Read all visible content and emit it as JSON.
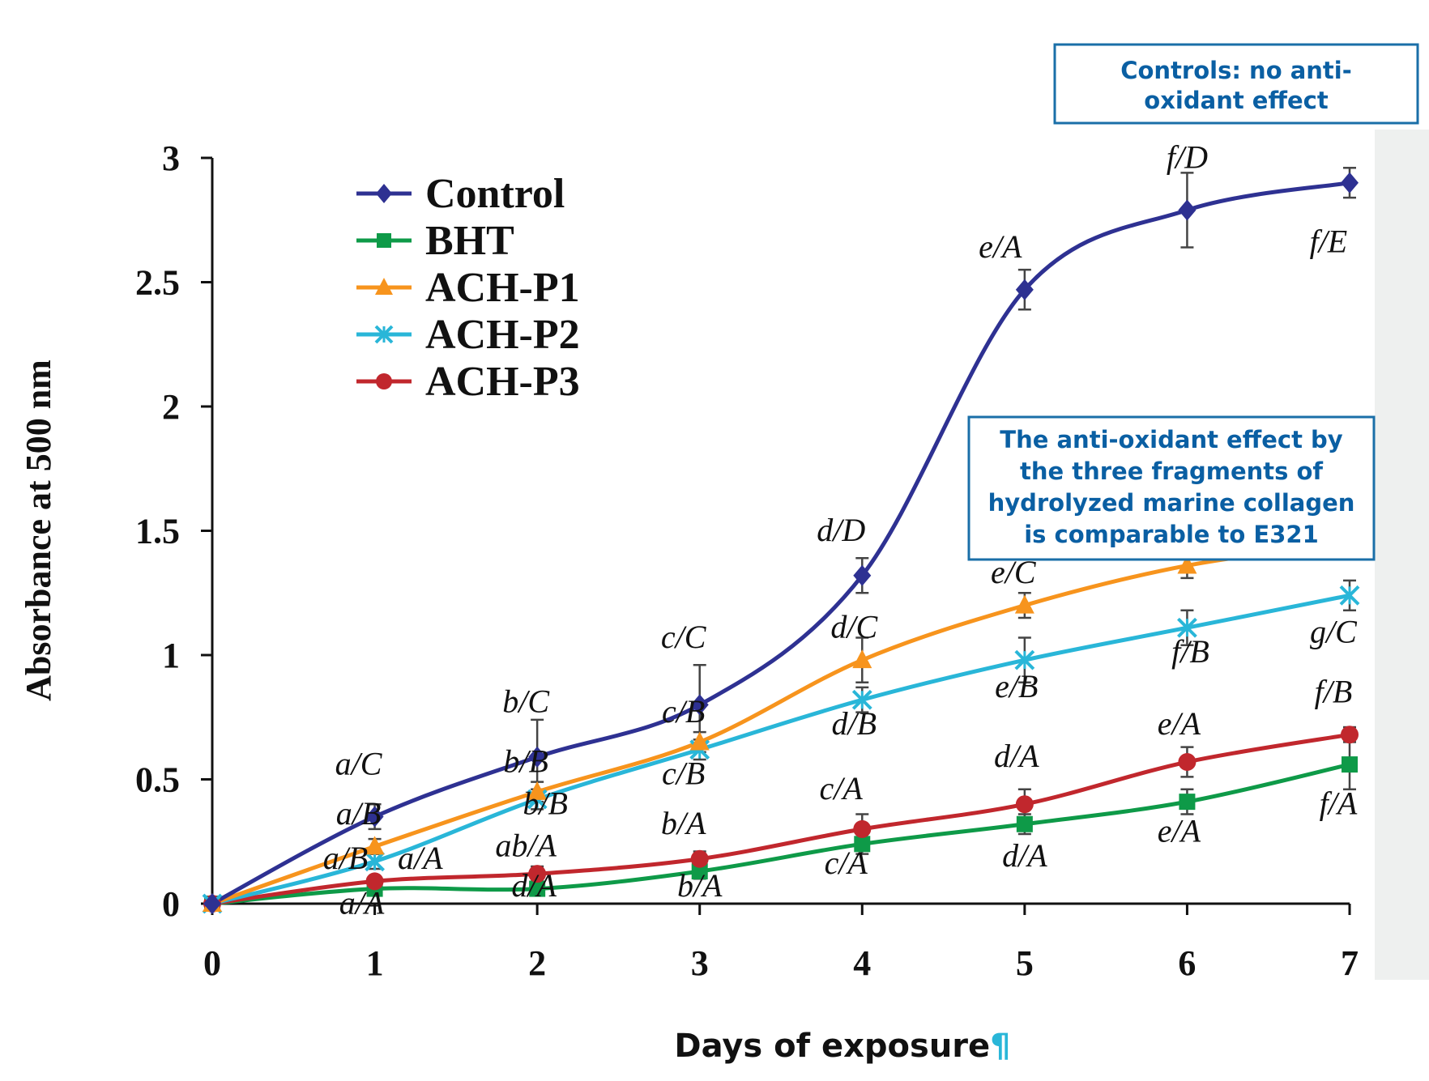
{
  "chart_data": {
    "type": "line",
    "ylabel": "Absorbance at 500 nm",
    "xlabel": "Days of exposure",
    "xlabel_mark": "¶",
    "xlim": [
      0,
      7
    ],
    "ylim": [
      0,
      3
    ],
    "x": [
      0,
      1,
      2,
      3,
      4,
      5,
      6,
      7
    ],
    "x_ticks": [
      "0",
      "1",
      "2",
      "3",
      "4",
      "5",
      "6",
      "7"
    ],
    "y_ticks": [
      "0",
      "0.5",
      "1",
      "1.5",
      "2",
      "2.5",
      "3"
    ],
    "y_tick_values": [
      0,
      0.5,
      1,
      1.5,
      2,
      2.5,
      3
    ],
    "legend_position": "top-left",
    "series": [
      {
        "name": "Control",
        "color": "#2e3192",
        "marker": "diamond",
        "values": [
          0,
          0.35,
          0.59,
          0.8,
          1.32,
          2.47,
          2.79,
          2.9
        ],
        "errors": [
          0,
          0.05,
          0.15,
          0.16,
          0.07,
          0.08,
          0.15,
          0.06
        ]
      },
      {
        "name": "BHT",
        "color": "#0e9a48",
        "marker": "square",
        "values": [
          0,
          0.06,
          0.06,
          0.13,
          0.24,
          0.32,
          0.41,
          0.56
        ],
        "errors": [
          0,
          0.02,
          0.02,
          0.03,
          0.04,
          0.04,
          0.05,
          0.1
        ]
      },
      {
        "name": "ACH-P1",
        "color": "#f7941d",
        "marker": "triangle",
        "values": [
          0,
          0.23,
          0.45,
          0.65,
          0.98,
          1.2,
          1.36,
          1.45
        ],
        "errors": [
          0,
          0.03,
          0.04,
          0.04,
          0.09,
          0.05,
          0.05,
          0.04
        ]
      },
      {
        "name": "ACH-P2",
        "color": "#29b6d8",
        "marker": "x",
        "values": [
          0,
          0.17,
          0.42,
          0.62,
          0.82,
          0.98,
          1.11,
          1.24
        ],
        "errors": [
          0,
          0.03,
          0.04,
          0.04,
          0.05,
          0.09,
          0.07,
          0.06
        ]
      },
      {
        "name": "ACH-P3",
        "color": "#c1272d",
        "marker": "circle",
        "values": [
          0,
          0.09,
          0.12,
          0.18,
          0.3,
          0.4,
          0.57,
          0.68
        ],
        "errors": [
          0,
          0.02,
          0.03,
          0.03,
          0.06,
          0.06,
          0.06,
          0.03
        ]
      }
    ],
    "annotations": [
      {
        "text": "a/C",
        "x": 0.9,
        "y": 0.52
      },
      {
        "text": "a/B",
        "x": 0.9,
        "y": 0.32
      },
      {
        "text": "a/B",
        "x": 0.82,
        "y": 0.14
      },
      {
        "text": "a/A",
        "x": 1.28,
        "y": 0.14
      },
      {
        "text": "a/A",
        "x": 0.92,
        "y": -0.04
      },
      {
        "text": "b/C",
        "x": 1.93,
        "y": 0.77
      },
      {
        "text": "b/B",
        "x": 1.93,
        "y": 0.53
      },
      {
        "text": "b/B",
        "x": 2.05,
        "y": 0.36
      },
      {
        "text": "ab/A",
        "x": 1.93,
        "y": 0.19
      },
      {
        "text": "d/A",
        "x": 1.98,
        "y": 0.03
      },
      {
        "text": "c/C",
        "x": 2.9,
        "y": 1.03
      },
      {
        "text": "c/B",
        "x": 2.9,
        "y": 0.73
      },
      {
        "text": "c/B",
        "x": 2.9,
        "y": 0.48
      },
      {
        "text": "b/A",
        "x": 2.9,
        "y": 0.28
      },
      {
        "text": "b/A",
        "x": 3.0,
        "y": 0.03
      },
      {
        "text": "d/D",
        "x": 3.87,
        "y": 1.46
      },
      {
        "text": "d/C",
        "x": 3.95,
        "y": 1.07
      },
      {
        "text": "d/B",
        "x": 3.95,
        "y": 0.68
      },
      {
        "text": "c/A",
        "x": 3.87,
        "y": 0.42
      },
      {
        "text": "c/A",
        "x": 3.9,
        "y": 0.12
      },
      {
        "text": "e/A",
        "x": 4.85,
        "y": 2.6
      },
      {
        "text": "e/C",
        "x": 4.93,
        "y": 1.29
      },
      {
        "text": "e/B",
        "x": 4.95,
        "y": 0.83
      },
      {
        "text": "d/A",
        "x": 4.95,
        "y": 0.55
      },
      {
        "text": "d/A",
        "x": 5.0,
        "y": 0.15
      },
      {
        "text": "f/D",
        "x": 6.0,
        "y": 2.96
      },
      {
        "text": "f/B",
        "x": 6.02,
        "y": 0.97
      },
      {
        "text": "e/A",
        "x": 5.95,
        "y": 0.68
      },
      {
        "text": "e/A",
        "x": 5.95,
        "y": 0.25
      },
      {
        "text": "f/E",
        "x": 6.87,
        "y": 2.62
      },
      {
        "text": "g/C",
        "x": 6.9,
        "y": 1.05
      },
      {
        "text": "f/B",
        "x": 6.9,
        "y": 0.81
      },
      {
        "text": "f/A",
        "x": 6.93,
        "y": 0.36
      }
    ],
    "text_boxes": [
      {
        "lines": [
          "Controls: no anti-",
          "oxidant effect"
        ],
        "border_color": "#1a6fa8"
      },
      {
        "lines": [
          "The anti-oxidant effect by",
          "the three fragments of",
          "hydrolyzed marine collagen",
          "is comparable to E321"
        ],
        "border_color": "#1a6fa8"
      }
    ]
  }
}
